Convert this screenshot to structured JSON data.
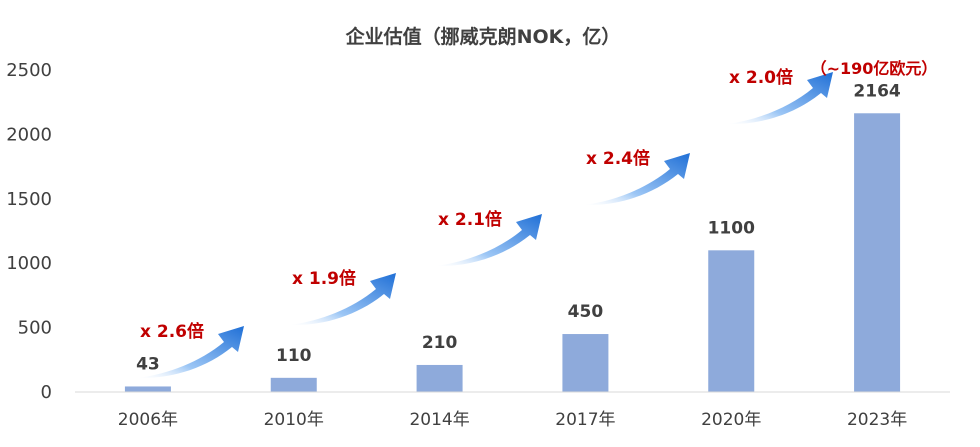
{
  "chart_data": {
    "type": "bar",
    "title": "企业估值（挪威克朗NOK，亿）",
    "categories": [
      "2006年",
      "2010年",
      "2014年",
      "2017年",
      "2020年",
      "2023年"
    ],
    "values": [
      43,
      110,
      210,
      450,
      1100,
      2164
    ],
    "data_labels": [
      "43",
      "110",
      "210",
      "450",
      "1100",
      "2164"
    ],
    "ylim": [
      0,
      2500
    ],
    "yticks": [
      "0",
      "500",
      "1000",
      "1500",
      "2000",
      "2500"
    ],
    "xlabel": "",
    "ylabel": "",
    "grid": false,
    "legend": "none",
    "annotations": {
      "multipliers": [
        "x 2.6倍",
        "x 1.9倍",
        "x 2.1倍",
        "x 2.4倍",
        "x 2.0倍"
      ],
      "note": "（~190亿欧元）"
    },
    "colors": {
      "bar": "#8eaadb",
      "multiplier_text": "#c00000",
      "arrow_light": "#ffffff",
      "arrow_dark": "#1f6fd6",
      "text": "#404040",
      "axis": "#d9d9d9"
    }
  }
}
